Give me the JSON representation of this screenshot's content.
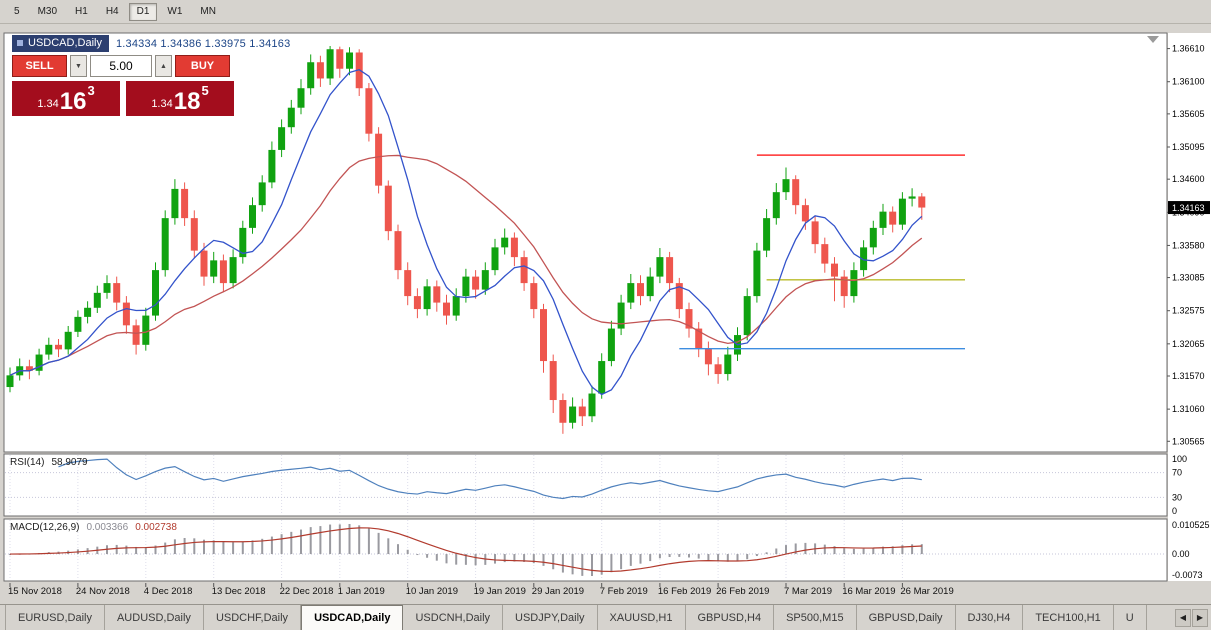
{
  "toolbar": {
    "timeframes": [
      "5",
      "M30",
      "H1",
      "H4",
      "D1",
      "W1",
      "MN"
    ],
    "active": "D1"
  },
  "chart": {
    "symbol": "USDCAD,Daily",
    "ohlc_values": "1.34334 1.34386 1.33975 1.34163",
    "price_tag": "1.34163",
    "axis_labels": [
      "1.36610",
      "1.36100",
      "1.35605",
      "1.35095",
      "1.34600",
      "1.34090",
      "1.33580",
      "1.33085",
      "1.32575",
      "1.32065",
      "1.31570",
      "1.31060",
      "1.30565"
    ],
    "trade_panel": {
      "sell_label": "SELL",
      "buy_label": "BUY",
      "volume": "5.00",
      "volume_down_icon": "▼",
      "volume_up_icon": "▲",
      "sell_price": {
        "prefix": "1.34",
        "big": "16",
        "sup": "3"
      },
      "buy_price": {
        "prefix": "1.34",
        "big": "18",
        "sup": "5"
      }
    }
  },
  "chart_data": {
    "type": "candlestick",
    "symbol": "USDCAD",
    "timeframe": "Daily",
    "y_range": [
      1.304,
      1.3685
    ],
    "up_color": "#10a210",
    "down_color": "#ee564d",
    "candles": [
      [
        1.314,
        1.317,
        1.3132,
        1.3158
      ],
      [
        1.3158,
        1.3184,
        1.315,
        1.3172
      ],
      [
        1.3172,
        1.3182,
        1.3152,
        1.3165
      ],
      [
        1.3165,
        1.3199,
        1.3158,
        1.319
      ],
      [
        1.319,
        1.3216,
        1.3182,
        1.3205
      ],
      [
        1.3205,
        1.3214,
        1.3186,
        1.3198
      ],
      [
        1.3198,
        1.3234,
        1.319,
        1.3225
      ],
      [
        1.3225,
        1.3258,
        1.3217,
        1.3248
      ],
      [
        1.3248,
        1.3272,
        1.3238,
        1.3262
      ],
      [
        1.3262,
        1.3296,
        1.3254,
        1.3285
      ],
      [
        1.3285,
        1.3312,
        1.3276,
        1.33
      ],
      [
        1.33,
        1.331,
        1.3258,
        1.327
      ],
      [
        1.327,
        1.328,
        1.3222,
        1.3235
      ],
      [
        1.3235,
        1.3244,
        1.319,
        1.3205
      ],
      [
        1.3205,
        1.3262,
        1.3196,
        1.325
      ],
      [
        1.325,
        1.3332,
        1.3242,
        1.332
      ],
      [
        1.332,
        1.3412,
        1.331,
        1.34
      ],
      [
        1.34,
        1.346,
        1.339,
        1.3445
      ],
      [
        1.3445,
        1.3455,
        1.3388,
        1.34
      ],
      [
        1.34,
        1.3412,
        1.3338,
        1.335
      ],
      [
        1.335,
        1.3362,
        1.3296,
        1.331
      ],
      [
        1.331,
        1.3348,
        1.33,
        1.3335
      ],
      [
        1.3335,
        1.3344,
        1.3286,
        1.33
      ],
      [
        1.33,
        1.3352,
        1.3292,
        1.334
      ],
      [
        1.334,
        1.3396,
        1.333,
        1.3385
      ],
      [
        1.3385,
        1.3432,
        1.3376,
        1.342
      ],
      [
        1.342,
        1.3466,
        1.341,
        1.3455
      ],
      [
        1.3455,
        1.3518,
        1.3446,
        1.3505
      ],
      [
        1.3505,
        1.3552,
        1.3494,
        1.354
      ],
      [
        1.354,
        1.3582,
        1.353,
        1.357
      ],
      [
        1.357,
        1.3614,
        1.356,
        1.36
      ],
      [
        1.36,
        1.3652,
        1.359,
        1.364
      ],
      [
        1.364,
        1.365,
        1.3602,
        1.3615
      ],
      [
        1.3615,
        1.3665,
        1.3605,
        1.366
      ],
      [
        1.366,
        1.3664,
        1.3616,
        1.363
      ],
      [
        1.363,
        1.3663,
        1.362,
        1.3655
      ],
      [
        1.3655,
        1.366,
        1.3588,
        1.36
      ],
      [
        1.36,
        1.3608,
        1.3518,
        1.353
      ],
      [
        1.353,
        1.354,
        1.3438,
        1.345
      ],
      [
        1.345,
        1.3458,
        1.3366,
        1.338
      ],
      [
        1.338,
        1.339,
        1.3306,
        1.332
      ],
      [
        1.332,
        1.3332,
        1.3266,
        1.328
      ],
      [
        1.328,
        1.3292,
        1.3246,
        1.326
      ],
      [
        1.326,
        1.3306,
        1.325,
        1.3295
      ],
      [
        1.3295,
        1.3304,
        1.3256,
        1.327
      ],
      [
        1.327,
        1.3282,
        1.3236,
        1.325
      ],
      [
        1.325,
        1.3292,
        1.3242,
        1.328
      ],
      [
        1.328,
        1.3322,
        1.327,
        1.331
      ],
      [
        1.331,
        1.332,
        1.3276,
        1.329
      ],
      [
        1.329,
        1.3332,
        1.3282,
        1.332
      ],
      [
        1.332,
        1.3368,
        1.3312,
        1.3355
      ],
      [
        1.3355,
        1.3384,
        1.3344,
        1.337
      ],
      [
        1.337,
        1.3378,
        1.3326,
        1.334
      ],
      [
        1.334,
        1.335,
        1.3288,
        1.33
      ],
      [
        1.33,
        1.331,
        1.3246,
        1.326
      ],
      [
        1.326,
        1.3268,
        1.3162,
        1.318
      ],
      [
        1.318,
        1.319,
        1.31,
        1.312
      ],
      [
        1.312,
        1.313,
        1.3068,
        1.3085
      ],
      [
        1.3085,
        1.3124,
        1.3076,
        1.311
      ],
      [
        1.311,
        1.3122,
        1.308,
        1.3095
      ],
      [
        1.3095,
        1.3142,
        1.3086,
        1.313
      ],
      [
        1.313,
        1.3192,
        1.3122,
        1.318
      ],
      [
        1.318,
        1.3242,
        1.3172,
        1.323
      ],
      [
        1.323,
        1.3282,
        1.322,
        1.327
      ],
      [
        1.327,
        1.3314,
        1.326,
        1.33
      ],
      [
        1.33,
        1.3312,
        1.3266,
        1.328
      ],
      [
        1.328,
        1.3324,
        1.3272,
        1.331
      ],
      [
        1.331,
        1.3354,
        1.33,
        1.334
      ],
      [
        1.334,
        1.3348,
        1.3286,
        1.33
      ],
      [
        1.33,
        1.3308,
        1.3246,
        1.326
      ],
      [
        1.326,
        1.327,
        1.3216,
        1.323
      ],
      [
        1.323,
        1.324,
        1.3186,
        1.32
      ],
      [
        1.32,
        1.321,
        1.3158,
        1.3175
      ],
      [
        1.3175,
        1.3186,
        1.3145,
        1.316
      ],
      [
        1.316,
        1.3202,
        1.315,
        1.319
      ],
      [
        1.319,
        1.3232,
        1.318,
        1.322
      ],
      [
        1.322,
        1.3292,
        1.3212,
        1.328
      ],
      [
        1.328,
        1.3362,
        1.327,
        1.335
      ],
      [
        1.335,
        1.3414,
        1.334,
        1.34
      ],
      [
        1.34,
        1.3454,
        1.339,
        1.344
      ],
      [
        1.344,
        1.3478,
        1.3428,
        1.346
      ],
      [
        1.346,
        1.3466,
        1.3406,
        1.342
      ],
      [
        1.342,
        1.343,
        1.3382,
        1.3395
      ],
      [
        1.3395,
        1.3404,
        1.3346,
        1.336
      ],
      [
        1.336,
        1.337,
        1.3316,
        1.333
      ],
      [
        1.333,
        1.334,
        1.3272,
        1.331
      ],
      [
        1.331,
        1.332,
        1.3262,
        1.328
      ],
      [
        1.328,
        1.3332,
        1.327,
        1.332
      ],
      [
        1.332,
        1.3366,
        1.331,
        1.3355
      ],
      [
        1.3355,
        1.3396,
        1.3344,
        1.3385
      ],
      [
        1.3385,
        1.3422,
        1.3374,
        1.341
      ],
      [
        1.341,
        1.3418,
        1.3378,
        1.339
      ],
      [
        1.339,
        1.344,
        1.3382,
        1.343
      ],
      [
        1.343,
        1.3446,
        1.3418,
        1.34334
      ],
      [
        1.34334,
        1.34386,
        1.33975,
        1.34163
      ]
    ],
    "x_labels": [
      {
        "text": "15 Nov 2018",
        "i": 0
      },
      {
        "text": "24 Nov 2018",
        "i": 7
      },
      {
        "text": "4 Dec 2018",
        "i": 14
      },
      {
        "text": "13 Dec 2018",
        "i": 21
      },
      {
        "text": "22 Dec 2018",
        "i": 28
      },
      {
        "text": "1 Jan 2019",
        "i": 34
      },
      {
        "text": "10 Jan 2019",
        "i": 41
      },
      {
        "text": "19 Jan 2019",
        "i": 48
      },
      {
        "text": "29 Jan 2019",
        "i": 54
      },
      {
        "text": "7 Feb 2019",
        "i": 61
      },
      {
        "text": "16 Feb 2019",
        "i": 67
      },
      {
        "text": "26 Feb 2019",
        "i": 73
      },
      {
        "text": "7 Mar 2019",
        "i": 80
      },
      {
        "text": "16 Mar 2019",
        "i": 86
      },
      {
        "text": "26 Mar 2019",
        "i": 92
      }
    ],
    "ma_fast": {
      "period": 7,
      "color": "#3353cb"
    },
    "ma_slow": {
      "period": 20,
      "color": "#c25454"
    },
    "hlines": [
      {
        "price": 1.3497,
        "from_i": 77,
        "color": "#ff2e2e"
      },
      {
        "price": 1.3305,
        "from_i": 78,
        "color": "#b9bb2a"
      },
      {
        "price": 1.3199,
        "from_i": 69,
        "color": "#3d8de0"
      }
    ],
    "rsi": {
      "label": "RSI(14)",
      "value": "58.9079",
      "period": 14,
      "levels": [
        70,
        30
      ],
      "scale_labels": [
        "100",
        "70",
        "30",
        "0"
      ],
      "color": "#4f81bd"
    },
    "macd": {
      "label": "MACD(12,26,9)",
      "value_main": "0.003366",
      "value_signal": "0.002738",
      "fast": 12,
      "slow": 26,
      "signal": 9,
      "scale_labels": [
        "0.010525",
        "0.00",
        "-0.0073"
      ],
      "histogram_color": "#9a9aa0",
      "signal_color": "#b23b2e"
    }
  },
  "tabs": {
    "items": [
      "EURUSD,Daily",
      "AUDUSD,Daily",
      "USDCHF,Daily",
      "USDCAD,Daily",
      "USDCNH,Daily",
      "USDJPY,Daily",
      "XAUUSD,H1",
      "GBPUSD,H4",
      "SP500,M15",
      "GBPUSD,Daily",
      "DJ30,H4",
      "TECH100,H1",
      "U"
    ],
    "active": "USDCAD,Daily",
    "nav_left_icon": "◀",
    "nav_right_icon": "▶"
  }
}
